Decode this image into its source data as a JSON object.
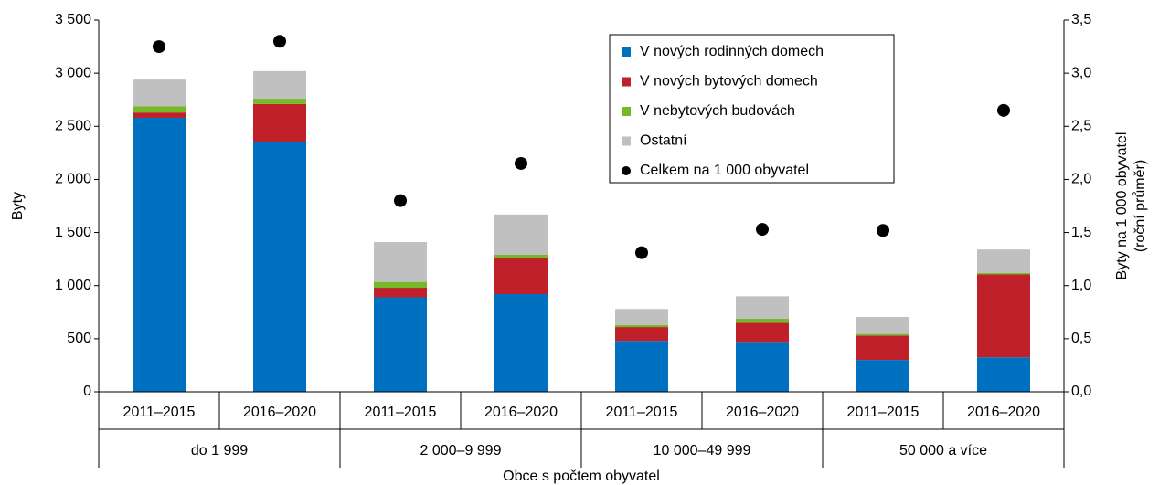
{
  "chart_data": {
    "type": "bar",
    "stacked": true,
    "ylabel": "Byty",
    "y2label": [
      "Byty na 1 000 obyvatel",
      "(roční průměr)"
    ],
    "xlabel": "Obce s počtem obyvatel",
    "categories": [
      "2011–2015",
      "2016–2020",
      "2011–2015",
      "2016–2020",
      "2011–2015",
      "2016–2020",
      "2011–2015",
      "2016–2020"
    ],
    "groups": [
      "do 1 999",
      "2 000–9 999",
      "10 000–49 999",
      "50 000 a více"
    ],
    "series": [
      {
        "name": "V nových rodinných domech",
        "color": "#0070c0",
        "values": [
          2580,
          2350,
          890,
          920,
          480,
          470,
          300,
          325
        ]
      },
      {
        "name": "V nových bytových domech",
        "color": "#c0202a",
        "values": [
          50,
          360,
          90,
          340,
          130,
          180,
          230,
          780
        ]
      },
      {
        "name": "V nebytových budovách",
        "color": "#77b82a",
        "values": [
          60,
          50,
          55,
          30,
          20,
          40,
          15,
          15
        ]
      },
      {
        "name": "Ostatní",
        "color": "#c0c0c0",
        "values": [
          250,
          260,
          375,
          380,
          150,
          210,
          160,
          220
        ]
      },
      {
        "name": "Celkem na 1 000 obyvatel",
        "color": "#000000",
        "axis": "y2",
        "values": [
          3.25,
          3.3,
          1.8,
          2.15,
          1.31,
          1.53,
          1.52,
          2.65
        ]
      }
    ],
    "ylim": [
      0,
      3500
    ],
    "yticks": [
      0,
      {
        "value": 500,
        "label": "500"
      },
      {
        "value": 1000,
        "label": "1 000"
      },
      {
        "value": 1500,
        "label": "1 500"
      },
      {
        "value": 2000,
        "label": "2 000"
      },
      {
        "value": 2500,
        "label": "2 500"
      },
      {
        "value": 3000,
        "label": "3 000"
      },
      {
        "value": 3500,
        "label": "3 500"
      }
    ],
    "y2lim": [
      0,
      3.5
    ],
    "y2ticks": [
      {
        "value": 0,
        "label": "0,0"
      },
      {
        "value": 0.5,
        "label": "0,5"
      },
      {
        "value": 1,
        "label": "1,0"
      },
      {
        "value": 1.5,
        "label": "1,5"
      },
      {
        "value": 2,
        "label": "2,0"
      },
      {
        "value": 2.5,
        "label": "2,5"
      },
      {
        "value": 3,
        "label": "3,0"
      },
      {
        "value": 3.5,
        "label": "3,5"
      }
    ],
    "legend": "top-right"
  }
}
